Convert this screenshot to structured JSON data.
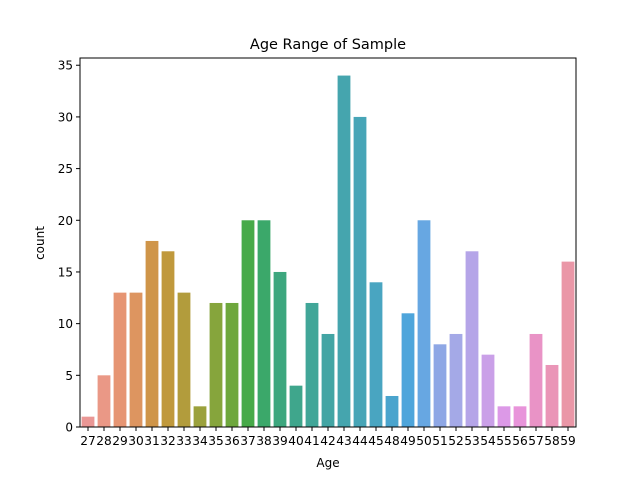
{
  "chart_data": {
    "type": "bar",
    "title": "Age Range of Sample",
    "xlabel": "Age",
    "ylabel": "count",
    "ylim": [
      0,
      35.7
    ],
    "yticks": [
      0,
      5,
      10,
      15,
      20,
      25,
      30,
      35
    ],
    "grid": false,
    "legend": "none",
    "categories": [
      "27",
      "28",
      "29",
      "30",
      "31",
      "32",
      "33",
      "34",
      "35",
      "36",
      "37",
      "38",
      "39",
      "40",
      "41",
      "42",
      "43",
      "44",
      "45",
      "48",
      "49",
      "50",
      "51",
      "52",
      "53",
      "54",
      "55",
      "56",
      "57",
      "58",
      "59"
    ],
    "values": [
      1,
      5,
      13,
      13,
      18,
      17,
      13,
      2,
      12,
      12,
      20,
      20,
      15,
      4,
      12,
      9,
      34,
      30,
      14,
      3,
      11,
      20,
      8,
      9,
      17,
      7,
      2,
      2,
      9,
      6,
      16
    ],
    "colors": [
      "#ea9795",
      "#ea9886",
      "#e69573",
      "#dd9560",
      "#cf9549",
      "#c0993c",
      "#b29c3c",
      "#9ba13c",
      "#86a53c",
      "#6ea73d",
      "#47aa49",
      "#3ba86a",
      "#3da77e",
      "#3fa68c",
      "#41a698",
      "#43a5a4",
      "#45a5ae",
      "#47a5b7",
      "#49a5c1",
      "#4aa4cd",
      "#4ea5db",
      "#67a7e2",
      "#8ea7e5",
      "#a4a9e7",
      "#b5a5e8",
      "#caa0e8",
      "#dc99e7",
      "#e894da",
      "#e993c6",
      "#ea95b7",
      "#ea97a7"
    ]
  }
}
